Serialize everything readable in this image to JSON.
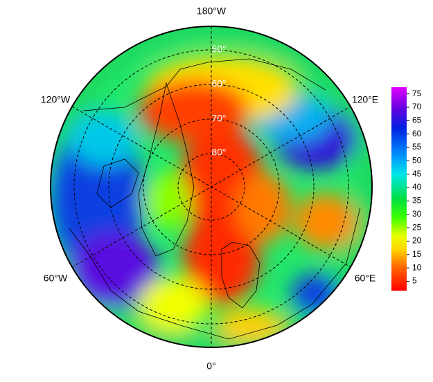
{
  "map": {
    "longitude_labels": [
      "180°W",
      "120°W",
      "120°E",
      "60°W",
      "60°E",
      "0°"
    ],
    "latitude_labels": [
      "50°",
      "60°",
      "70°",
      "80°"
    ]
  },
  "colorbar": {
    "lim": [
      1.5,
      77.5
    ],
    "ticks": [
      5,
      10,
      15,
      20,
      25,
      30,
      35,
      40,
      45,
      50,
      55,
      60,
      65,
      70,
      75
    ]
  }
}
